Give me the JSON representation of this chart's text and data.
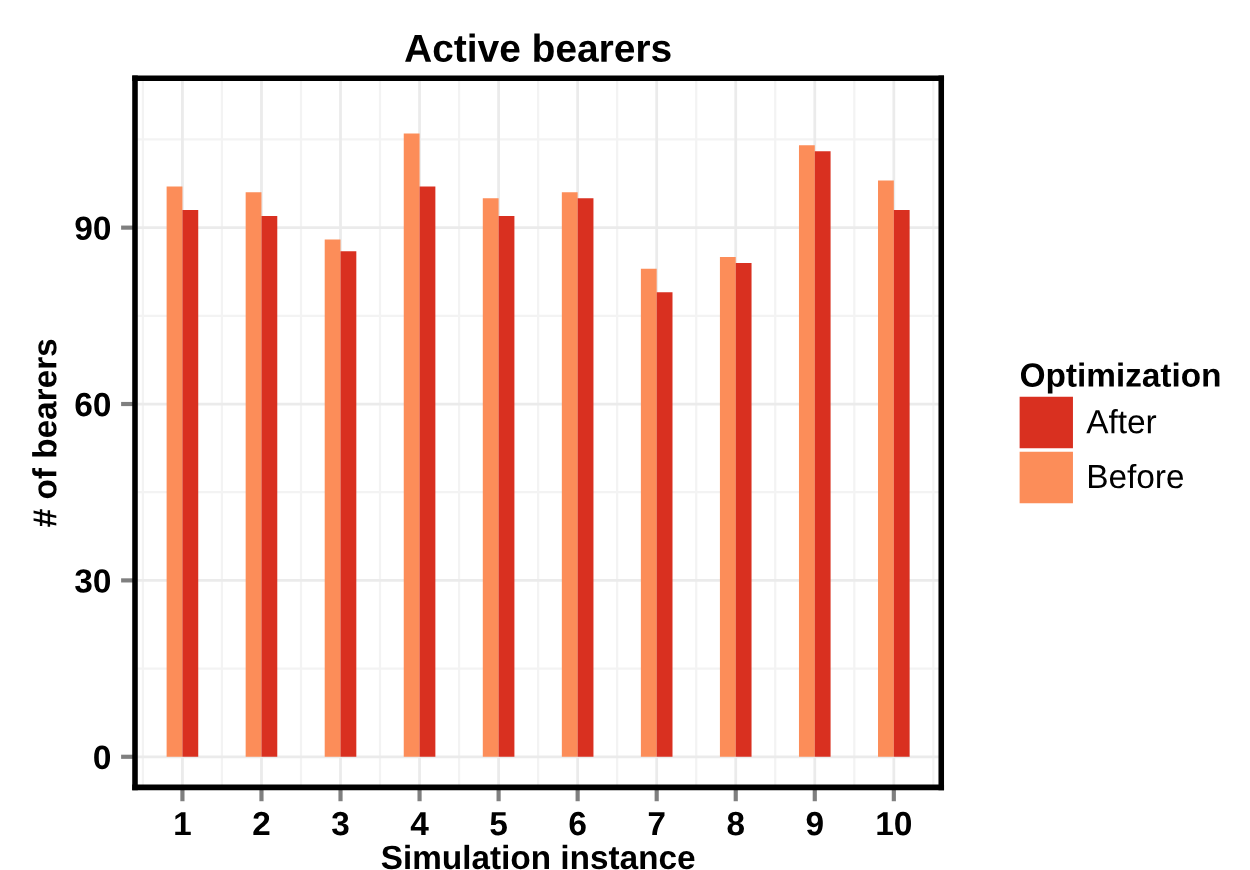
{
  "chart_data": {
    "type": "bar",
    "title": "Active bearers",
    "xlabel": "Simulation instance",
    "ylabel": "# of bearers",
    "legend_title": "Optimization",
    "categories": [
      "1",
      "2",
      "3",
      "4",
      "5",
      "6",
      "7",
      "8",
      "9",
      "10"
    ],
    "series": [
      {
        "name": "Before",
        "color": "#fc8d59",
        "values": [
          97,
          96,
          88,
          106,
          95,
          96,
          83,
          85,
          104,
          98
        ]
      },
      {
        "name": "After",
        "color": "#d93020",
        "values": [
          93,
          92,
          86,
          97,
          92,
          95,
          79,
          84,
          103,
          93
        ]
      }
    ],
    "ylim": [
      -5.2,
      115.4
    ],
    "yticks": [
      0,
      30,
      60,
      90
    ],
    "grid": true,
    "legend": "right"
  }
}
